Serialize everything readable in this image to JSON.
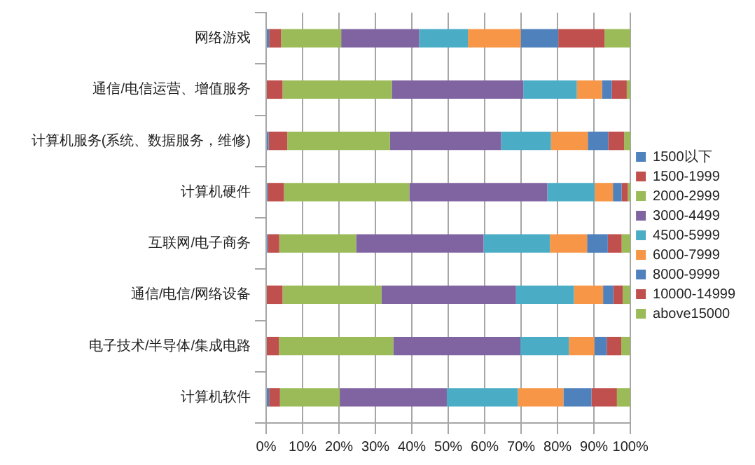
{
  "chart_data": {
    "type": "bar",
    "orientation": "horizontal",
    "stacked": true,
    "categories": [
      "网络游戏",
      "通信/电信运营、增值服务",
      "计算机服务(系统、数据服务，维修)",
      "计算机硬件",
      "互联网/电子商务",
      "通信/电信/网络设备",
      "电子技术/半导体/集成电路",
      "计算机软件"
    ],
    "series": [
      {
        "name": "1500以下",
        "color": "#4f81bd",
        "values": [
          0.8,
          null,
          0.7,
          0.5,
          0.5,
          null,
          null,
          0.8
        ]
      },
      {
        "name": "1500-1999",
        "color": "#c0504d",
        "values": [
          3.3,
          4.5,
          5.1,
          4.4,
          3.1,
          4.5,
          3.5,
          3.0
        ]
      },
      {
        "name": "2000-2999",
        "color": "#9bbb59",
        "values": [
          16.5,
          30.0,
          28.2,
          34.4,
          21.1,
          27.2,
          31.4,
          16.4
        ]
      },
      {
        "name": "3000-4499",
        "color": "#8064a2",
        "values": [
          21.4,
          36.1,
          30.5,
          37.9,
          35.0,
          36.9,
          34.9,
          29.4
        ]
      },
      {
        "name": "4500-5999",
        "color": "#4bacc6",
        "values": [
          13.4,
          14.7,
          13.7,
          13.0,
          18.2,
          15.9,
          13.3,
          19.5
        ]
      },
      {
        "name": "6000-7999",
        "color": "#f79646",
        "values": [
          14.5,
          6.9,
          10.1,
          5.0,
          10.2,
          8.0,
          7.0,
          12.5
        ]
      },
      {
        "name": "8000-9999",
        "color": "#4f81bd",
        "values": [
          10.3,
          2.7,
          5.6,
          2.4,
          5.7,
          2.8,
          3.4,
          7.7
        ]
      },
      {
        "name": "10000-14999",
        "color": "#c0504d",
        "values": [
          12.7,
          4.1,
          4.4,
          1.7,
          3.8,
          2.6,
          4.0,
          7.0
        ]
      },
      {
        "name": "above15000",
        "color": "#9bbb59",
        "values": [
          7.1,
          0.9,
          1.7,
          0.7,
          2.4,
          2.0,
          2.4,
          3.7
        ]
      }
    ],
    "xlim": [
      0,
      100
    ],
    "xticks": [
      {
        "value": 0,
        "label": "0%"
      },
      {
        "value": 10,
        "label": "10%"
      },
      {
        "value": 20,
        "label": "20%"
      },
      {
        "value": 30,
        "label": "30%"
      },
      {
        "value": 40,
        "label": "40%"
      },
      {
        "value": 50,
        "label": "50%"
      },
      {
        "value": 60,
        "label": "60%"
      },
      {
        "value": 70,
        "label": "70%"
      },
      {
        "value": 80,
        "label": "80%"
      },
      {
        "value": 90,
        "label": "90%"
      },
      {
        "value": 100,
        "label": "100%"
      }
    ],
    "grid": "x",
    "legend": "right"
  }
}
